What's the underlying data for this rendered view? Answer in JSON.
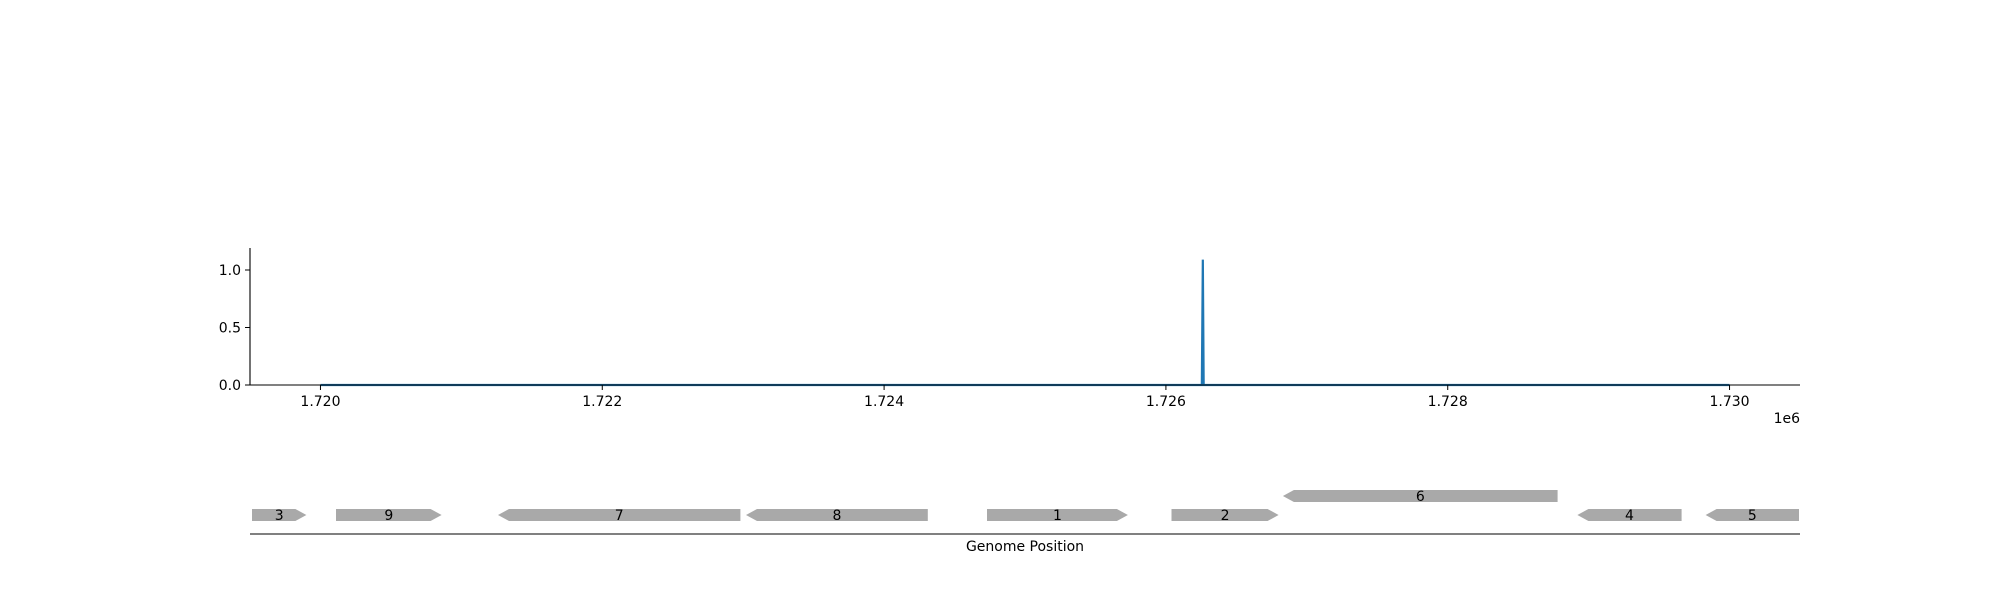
{
  "chart_data": [
    {
      "type": "line",
      "x": [
        1720000,
        1726255,
        1726262,
        1726268,
        1730000
      ],
      "series": [
        {
          "values": [
            0,
            0,
            1.09,
            0,
            0
          ],
          "color": "#1f77b4"
        }
      ],
      "xlim": [
        1719500,
        1730500
      ],
      "ylim": [
        0,
        1.2
      ],
      "xticks": [
        1720000,
        1722000,
        1724000,
        1726000,
        1728000,
        1730000
      ],
      "xtick_labels": [
        "1.720",
        "1.722",
        "1.724",
        "1.726",
        "1.728",
        "1.730"
      ],
      "yticks": [
        0.0,
        0.5,
        1.0
      ],
      "ytick_labels": [
        "0.0",
        "0.5",
        "1.0"
      ],
      "x_offset_label": "1e6",
      "grid": false
    },
    {
      "type": "gene-track",
      "xlabel": "Genome Position",
      "genes": [
        {
          "label": "3",
          "start": 1719510,
          "end": 1719900,
          "strand": "+",
          "row": 0
        },
        {
          "label": "9",
          "start": 1720110,
          "end": 1720860,
          "strand": "+",
          "row": 0
        },
        {
          "label": "7",
          "start": 1721260,
          "end": 1722980,
          "strand": "-",
          "row": 0
        },
        {
          "label": "8",
          "start": 1723020,
          "end": 1724310,
          "strand": "-",
          "row": 0
        },
        {
          "label": "1",
          "start": 1724730,
          "end": 1725730,
          "strand": "+",
          "row": 0
        },
        {
          "label": "2",
          "start": 1726040,
          "end": 1726800,
          "strand": "+",
          "row": 0
        },
        {
          "label": "6",
          "start": 1726830,
          "end": 1728780,
          "strand": "-",
          "row": 1
        },
        {
          "label": "4",
          "start": 1728920,
          "end": 1729660,
          "strand": "-",
          "row": 0
        },
        {
          "label": "5",
          "start": 1729830,
          "end": 1730500,
          "strand": "-",
          "row": 0
        }
      ],
      "gene_color": "#a9a9a9"
    }
  ]
}
